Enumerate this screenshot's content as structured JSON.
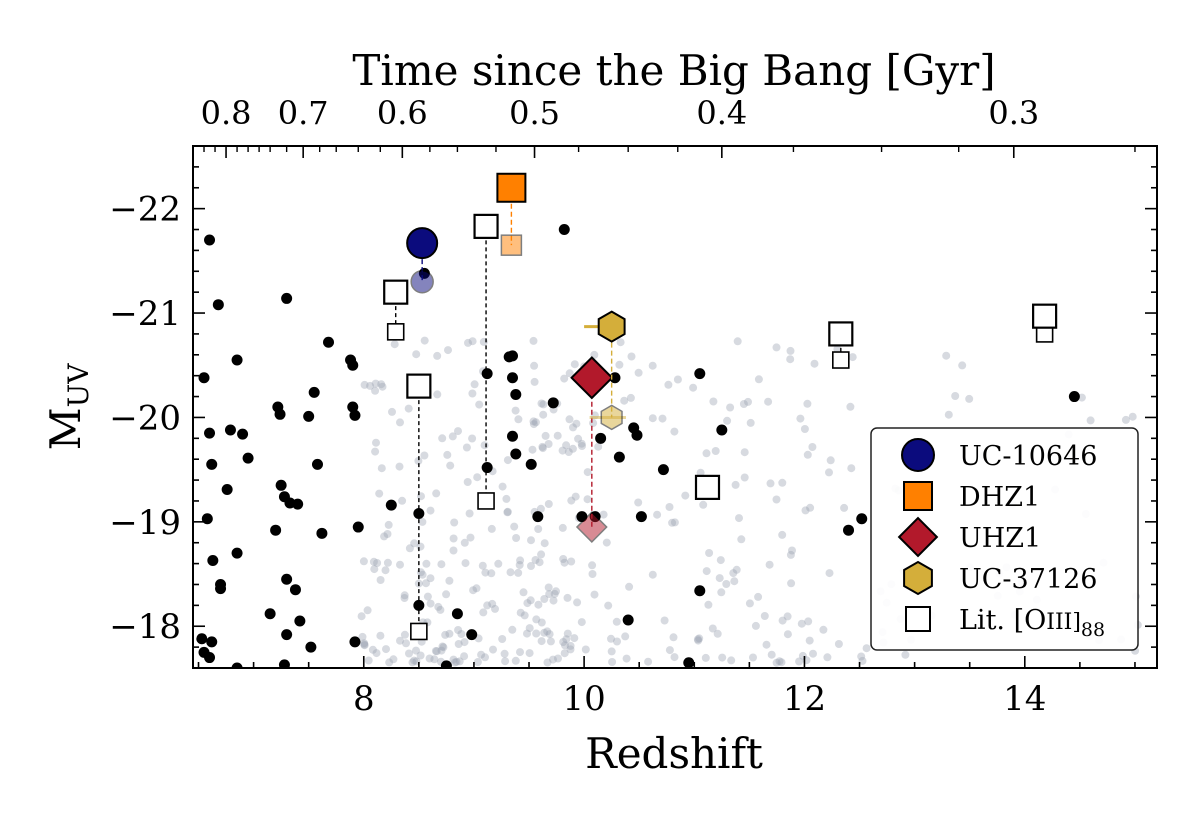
{
  "chart_data": {
    "type": "scatter",
    "xlabel": "Redshift",
    "ylabel": "M",
    "ylabel_sub": "UV",
    "top_xlabel": "Time since the Big Bang [Gyr]",
    "xlim": [
      6.45,
      15.2
    ],
    "ylim": [
      -17.6,
      -22.6
    ],
    "x_ticks": [
      8,
      10,
      12,
      14
    ],
    "x_tick_labels": [
      "8",
      "10",
      "12",
      "14"
    ],
    "y_ticks": [
      -22,
      -21,
      -20,
      -19,
      -18
    ],
    "y_tick_labels": [
      "−22",
      "−21",
      "−20",
      "−19",
      "−18"
    ],
    "top_ticks": [
      {
        "label": "0.8",
        "z": 6.75
      },
      {
        "label": "0.7",
        "z": 7.45
      },
      {
        "label": "0.6",
        "z": 8.35
      },
      {
        "label": "0.5",
        "z": 9.55
      },
      {
        "label": "0.4",
        "z": 11.25
      },
      {
        "label": "0.3",
        "z": 13.9
      }
    ],
    "top_minor_ticks": [
      6.55,
      6.65,
      6.85,
      6.95,
      7.05,
      7.15,
      7.3,
      7.6,
      7.75,
      7.95,
      8.15,
      8.6,
      8.85,
      9.2,
      9.95,
      10.4,
      10.85,
      11.9,
      12.7,
      13.4,
      15.0
    ],
    "series": [
      {
        "name": "Photometric candidates (background)",
        "style": "grey-dots",
        "seed": 42,
        "count": 430,
        "z_range": [
          7.9,
          15.1
        ],
        "muv_range": [
          -17.6,
          -20.9
        ]
      },
      {
        "name": "Spectroscopic galaxies",
        "style": "black-dots",
        "points": [
          [
            6.6,
            -21.7
          ],
          [
            6.55,
            -20.38
          ],
          [
            6.6,
            -19.85
          ],
          [
            6.62,
            -19.55
          ],
          [
            6.58,
            -19.03
          ],
          [
            6.63,
            -18.63
          ],
          [
            6.7,
            -18.36
          ],
          [
            6.53,
            -17.88
          ],
          [
            6.6,
            -17.7
          ],
          [
            6.55,
            -17.75
          ],
          [
            6.62,
            -17.85
          ],
          [
            6.68,
            -21.08
          ],
          [
            6.76,
            -19.31
          ],
          [
            6.79,
            -19.88
          ],
          [
            6.85,
            -20.55
          ],
          [
            6.85,
            -18.7
          ],
          [
            6.9,
            -19.84
          ],
          [
            6.95,
            -19.61
          ],
          [
            6.85,
            -17.6
          ],
          [
            6.7,
            -18.4
          ],
          [
            7.15,
            -18.12
          ],
          [
            7.2,
            -18.92
          ],
          [
            7.22,
            -20.1
          ],
          [
            7.24,
            -20.03
          ],
          [
            7.25,
            -19.35
          ],
          [
            7.28,
            -19.24
          ],
          [
            7.3,
            -21.14
          ],
          [
            7.3,
            -18.45
          ],
          [
            7.3,
            -17.92
          ],
          [
            7.33,
            -19.18
          ],
          [
            7.38,
            -18.35
          ],
          [
            7.42,
            -18.05
          ],
          [
            7.5,
            -20.01
          ],
          [
            7.55,
            -20.24
          ],
          [
            7.58,
            -19.55
          ],
          [
            7.62,
            -18.89
          ],
          [
            7.68,
            -20.72
          ],
          [
            7.52,
            -17.8
          ],
          [
            7.28,
            -17.63
          ],
          [
            7.4,
            -19.17
          ],
          [
            7.88,
            -20.55
          ],
          [
            7.9,
            -20.5
          ],
          [
            7.9,
            -20.1
          ],
          [
            7.92,
            -20.02
          ],
          [
            7.92,
            -17.85
          ],
          [
            7.95,
            -18.95
          ],
          [
            8.05,
            -17.55
          ],
          [
            8.25,
            -19.16
          ],
          [
            8.5,
            -19.08
          ],
          [
            8.5,
            -18.2
          ],
          [
            8.55,
            -21.38
          ],
          [
            8.85,
            -18.12
          ],
          [
            8.98,
            -17.92
          ],
          [
            8.75,
            -17.62
          ],
          [
            9.12,
            -20.42
          ],
          [
            9.12,
            -19.52
          ],
          [
            9.32,
            -20.58
          ],
          [
            9.35,
            -20.59
          ],
          [
            9.38,
            -20.22
          ],
          [
            9.35,
            -19.82
          ],
          [
            9.35,
            -20.38
          ],
          [
            9.38,
            -19.65
          ],
          [
            9.52,
            -19.55
          ],
          [
            9.58,
            -19.05
          ],
          [
            9.72,
            -20.14
          ],
          [
            9.82,
            -21.8
          ],
          [
            9.98,
            -19.05
          ],
          [
            10.1,
            -19.05
          ],
          [
            10.15,
            -19.8
          ],
          [
            10.28,
            -20.38
          ],
          [
            10.32,
            -19.62
          ],
          [
            10.4,
            -18.06
          ],
          [
            10.45,
            -19.9
          ],
          [
            10.48,
            -19.83
          ],
          [
            10.52,
            -19.05
          ],
          [
            10.72,
            -19.5
          ],
          [
            10.95,
            -17.65
          ],
          [
            11.05,
            -20.42
          ],
          [
            11.05,
            -18.34
          ],
          [
            11.25,
            -19.88
          ],
          [
            12.4,
            -18.92
          ],
          [
            12.52,
            -19.03
          ],
          [
            14.45,
            -20.2
          ]
        ]
      },
      {
        "name": "UC-10646",
        "style": "circle",
        "color": "#0b0b7d",
        "points": [
          [
            8.53,
            -21.67
          ],
          [
            8.53,
            -21.3
          ]
        ],
        "alpha": [
          1,
          0.5
        ]
      },
      {
        "name": "DHZ1",
        "style": "square",
        "color": "#ff8000",
        "points": [
          [
            9.34,
            -22.2
          ],
          [
            9.34,
            -21.65
          ]
        ],
        "alpha": [
          1,
          0.5
        ]
      },
      {
        "name": "UHZ1",
        "style": "diamond",
        "color": "#b2192b",
        "points": [
          [
            10.07,
            -20.38
          ],
          [
            10.07,
            -18.95
          ]
        ],
        "alpha": [
          1,
          0.5
        ]
      },
      {
        "name": "UC-37126",
        "style": "hexagon",
        "color": "#d4ae3a",
        "points": [
          [
            10.25,
            -20.87
          ],
          [
            10.25,
            -20.0
          ]
        ],
        "alpha": [
          1,
          0.5
        ],
        "xerr": [
          [
            10.0,
            10.25
          ],
          [
            10.05,
            10.38
          ]
        ]
      },
      {
        "name": "Lit. [OIII]88",
        "style": "open-square",
        "pairs": [
          [
            [
              8.29,
              -21.2
            ],
            [
              8.29,
              -20.82
            ]
          ],
          [
            [
              8.5,
              -20.3
            ],
            [
              8.5,
              -17.95
            ]
          ],
          [
            [
              9.11,
              -21.83
            ],
            [
              9.11,
              -19.2
            ]
          ],
          [
            [
              12.33,
              -20.8
            ],
            [
              12.33,
              -20.55
            ]
          ],
          [
            [
              14.18,
              -20.97
            ],
            [
              14.18,
              -20.8
            ]
          ]
        ],
        "singles": [
          [
            11.12,
            -19.33
          ]
        ]
      }
    ],
    "legend": {
      "placement": "lower-right",
      "entries": [
        {
          "label": "UC-10646",
          "marker": "circle",
          "color": "#0b0b7d"
        },
        {
          "label": "DHZ1",
          "marker": "square",
          "color": "#ff8000"
        },
        {
          "label": "UHZ1",
          "marker": "diamond",
          "color": "#b2192b"
        },
        {
          "label": "UC-37126",
          "marker": "hexagon",
          "color": "#d4ae3a"
        },
        {
          "label": "Lit. [O",
          "label_tail": "III]",
          "label_sub": "88",
          "marker": "open-square",
          "color": "#ffffff"
        }
      ]
    }
  }
}
